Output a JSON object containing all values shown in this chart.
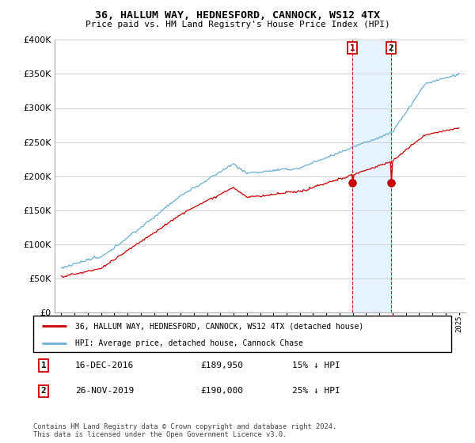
{
  "title": "36, HALLUM WAY, HEDNESFORD, CANNOCK, WS12 4TX",
  "subtitle": "Price paid vs. HM Land Registry's House Price Index (HPI)",
  "legend_line1": "36, HALLUM WAY, HEDNESFORD, CANNOCK, WS12 4TX (detached house)",
  "legend_line2": "HPI: Average price, detached house, Cannock Chase",
  "annotation1_label": "1",
  "annotation1_date": "16-DEC-2016",
  "annotation1_price": "£189,950",
  "annotation1_hpi": "15% ↓ HPI",
  "annotation2_label": "2",
  "annotation2_date": "26-NOV-2019",
  "annotation2_price": "£190,000",
  "annotation2_hpi": "25% ↓ HPI",
  "footer": "Contains HM Land Registry data © Crown copyright and database right 2024.\nThis data is licensed under the Open Government Licence v3.0.",
  "sale1_year": 2016.96,
  "sale1_value": 189950,
  "sale2_year": 2019.9,
  "sale2_value": 190000,
  "hpi_color": "#6ab0d4",
  "price_color": "#cc0000",
  "sale_dot_color": "#cc0000",
  "vline_color": "#cc0000",
  "span_color": "#ddeeff",
  "ylim": [
    0,
    400000
  ],
  "yticks": [
    0,
    50000,
    100000,
    150000,
    200000,
    250000,
    300000,
    350000,
    400000
  ],
  "year_start": 1995,
  "year_end": 2025
}
